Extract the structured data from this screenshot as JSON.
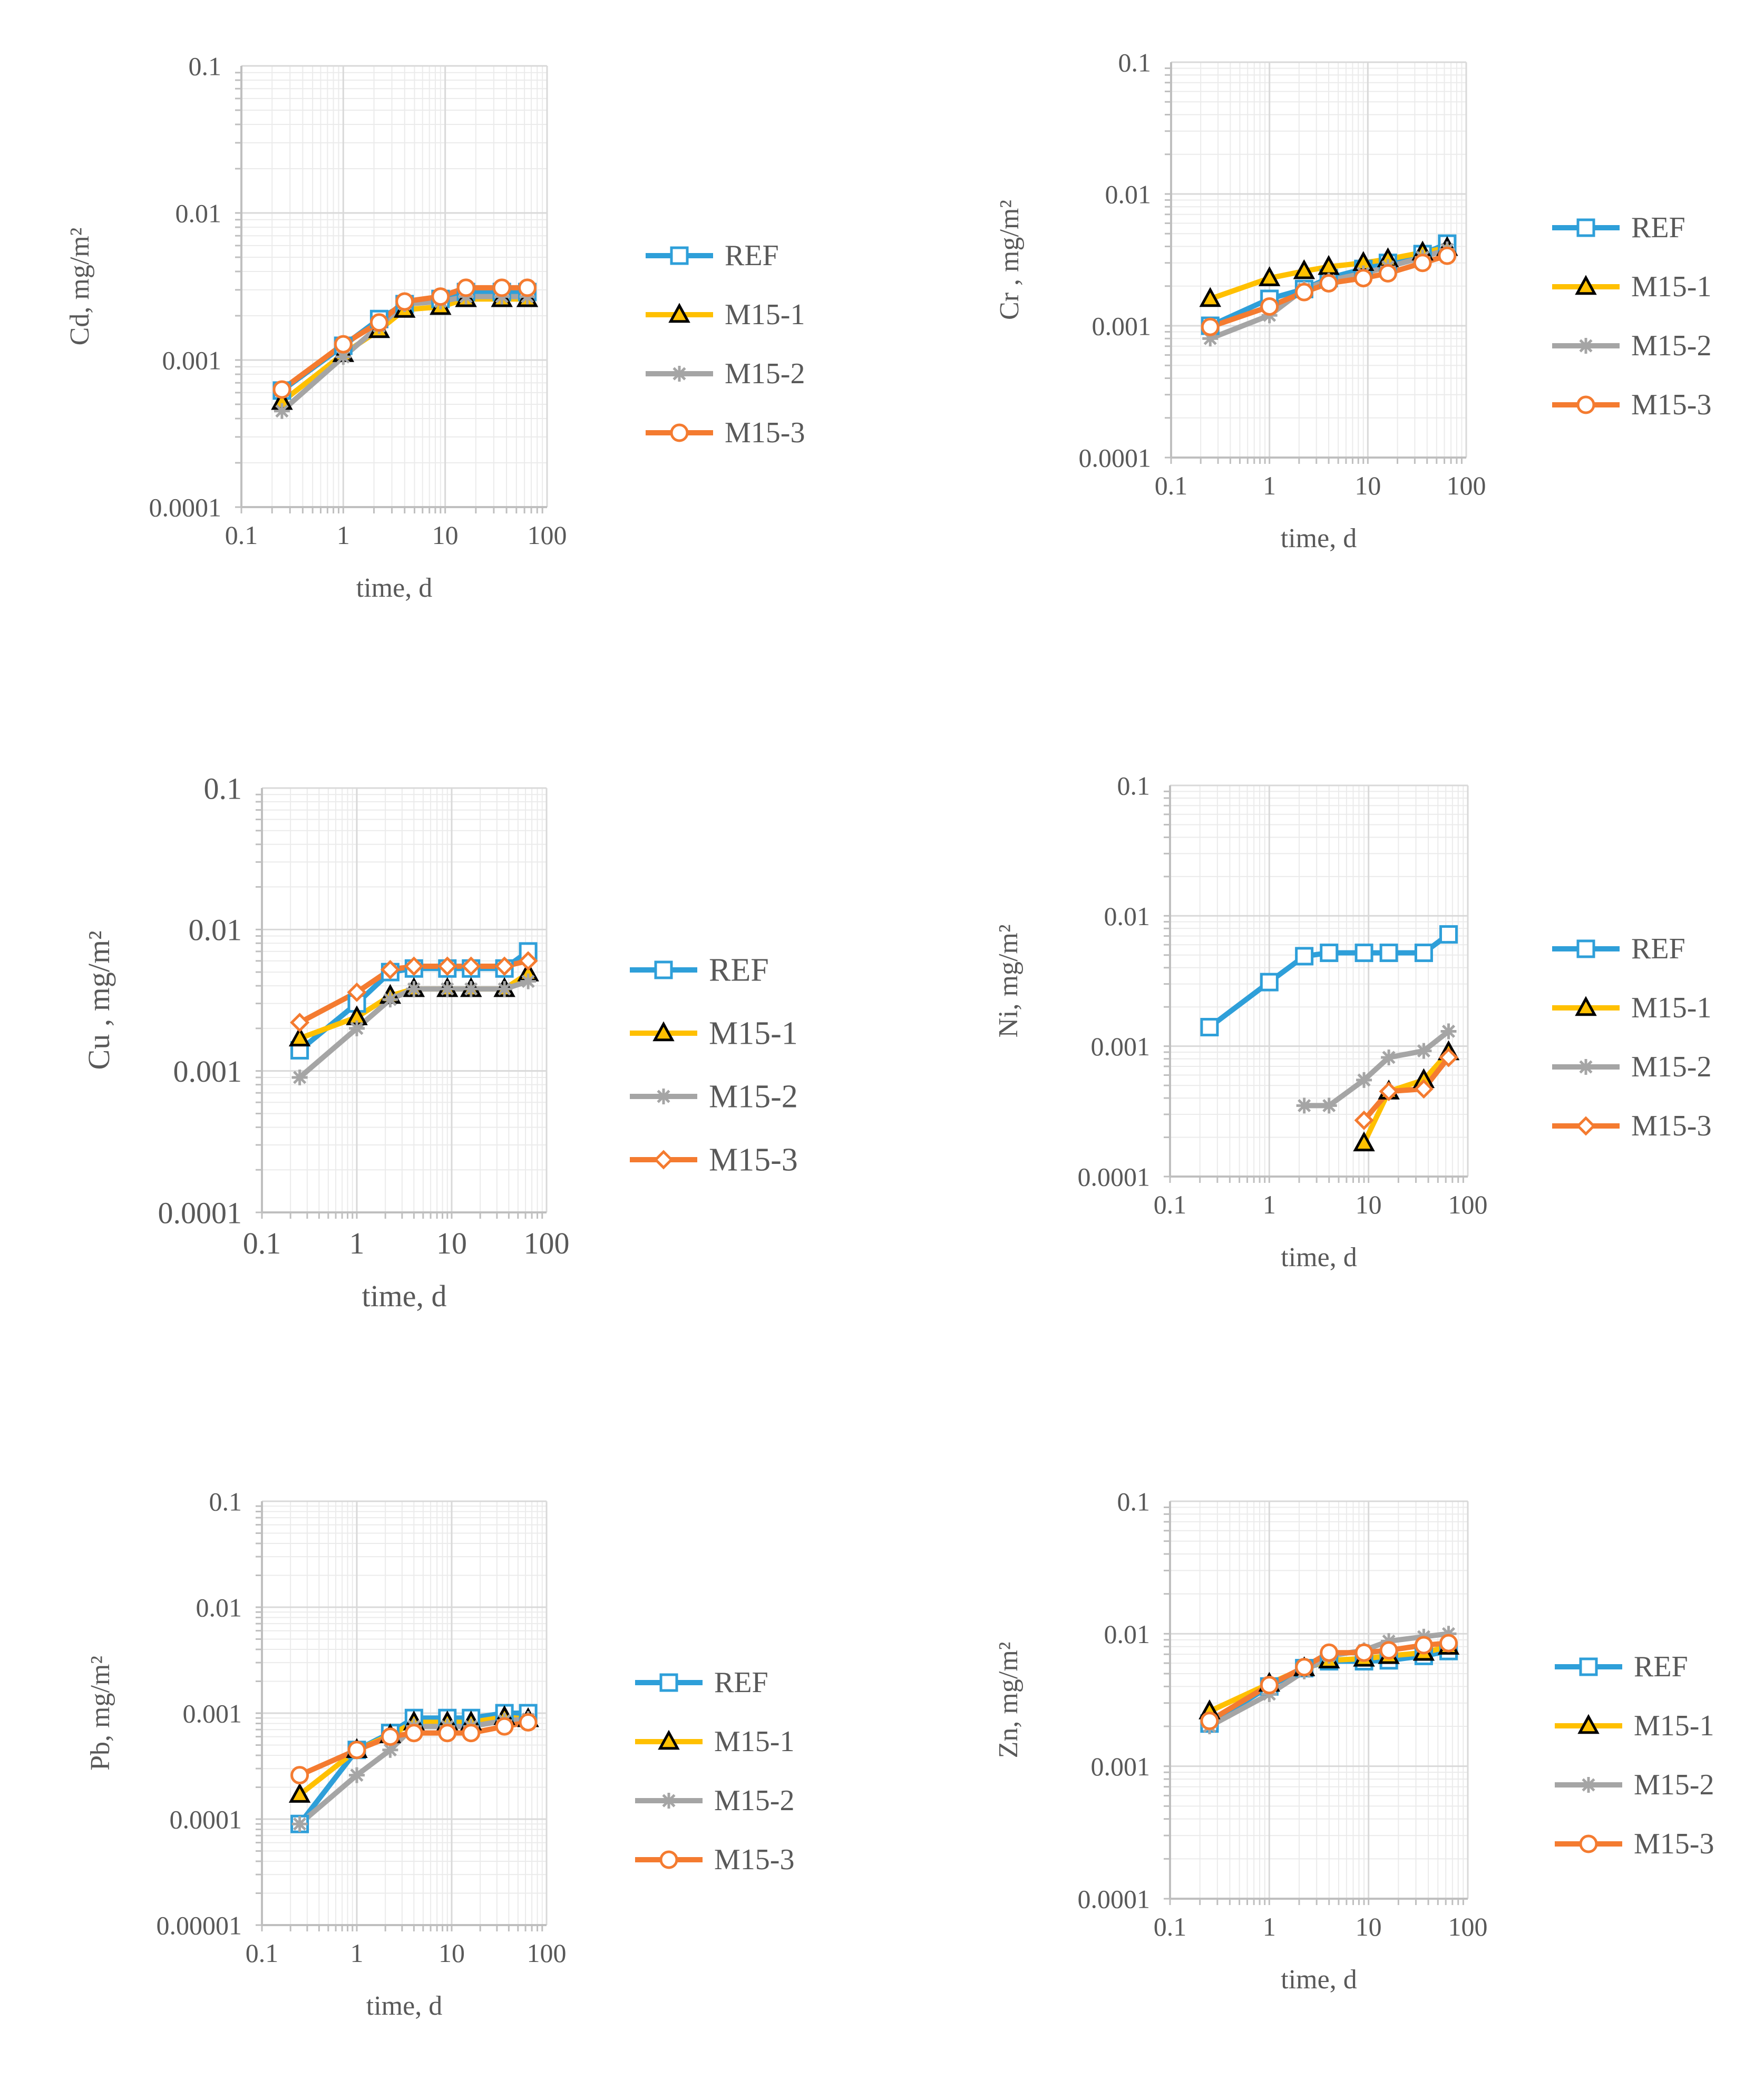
{
  "colors": {
    "REF": "#2E9FD9",
    "M15-1": "#FFC000",
    "M15-2": "#A5A5A5",
    "M15-3": "#F47B30",
    "minor_grid": "#EBEBEB",
    "decade_grid": "#D9D9D9",
    "axis": "#BFBFBF",
    "text": "#595959"
  },
  "legend_labels": [
    "REF",
    "M15-1",
    "M15-2",
    "M15-3"
  ],
  "chart_data": [
    {
      "id": "cd",
      "type": "line",
      "xscale": "log",
      "yscale": "log",
      "xlim": [
        0.1,
        100
      ],
      "ylim": [
        0.0001,
        0.1
      ],
      "xlabel": "time, d",
      "ylabel": "Cd, mg/m²",
      "xticks": [
        "0.1",
        "1",
        "10",
        "100"
      ],
      "yticks": [
        "0.0001",
        "0.001",
        "0.01",
        "0.1"
      ],
      "legend": "right",
      "series": [
        {
          "name": "REF",
          "marker": "square",
          "x": [
            0.25,
            1,
            2.25,
            4,
            9,
            16,
            36,
            64
          ],
          "y": [
            0.00062,
            0.00125,
            0.0019,
            0.0024,
            0.0026,
            0.0029,
            0.0029,
            0.0029
          ]
        },
        {
          "name": "M15-1",
          "marker": "triangle",
          "x": [
            0.25,
            1,
            2.25,
            4,
            9,
            16,
            36,
            64
          ],
          "y": [
            0.00052,
            0.0011,
            0.0016,
            0.0022,
            0.0023,
            0.0026,
            0.0026,
            0.0026
          ]
        },
        {
          "name": "M15-2",
          "marker": "star",
          "x": [
            0.25,
            1,
            2.25,
            4,
            9,
            16,
            36,
            64
          ],
          "y": [
            0.00045,
            0.00105,
            0.0017,
            0.0024,
            0.0025,
            0.0027,
            0.0027,
            0.0027
          ]
        },
        {
          "name": "M15-3",
          "marker": "circle",
          "x": [
            0.25,
            1,
            2.25,
            4,
            9,
            16,
            36,
            64
          ],
          "y": [
            0.00063,
            0.00128,
            0.0018,
            0.0025,
            0.0027,
            0.0031,
            0.0031,
            0.0031
          ]
        }
      ]
    },
    {
      "id": "cr",
      "type": "line",
      "xscale": "log",
      "yscale": "log",
      "xlim": [
        0.1,
        100
      ],
      "ylim": [
        0.0001,
        0.1
      ],
      "xlabel": "time, d",
      "ylabel": "Cr , mg/m²",
      "xticks": [
        "0.1",
        "1",
        "10",
        "100"
      ],
      "yticks": [
        "0.0001",
        "0.001",
        "0.01",
        "0.1"
      ],
      "legend": "right",
      "series": [
        {
          "name": "REF",
          "marker": "square",
          "x": [
            0.25,
            1,
            2.25,
            4,
            9,
            16,
            36,
            64
          ],
          "y": [
            0.001,
            0.0016,
            0.0019,
            0.0023,
            0.0027,
            0.003,
            0.0035,
            0.0042
          ]
        },
        {
          "name": "M15-1",
          "marker": "triangle",
          "x": [
            0.25,
            1,
            2.25,
            4,
            9,
            16,
            36,
            64
          ],
          "y": [
            0.0016,
            0.0023,
            0.0026,
            0.0028,
            0.003,
            0.0032,
            0.0036,
            0.0039
          ]
        },
        {
          "name": "M15-2",
          "marker": "star",
          "x": [
            0.25,
            1,
            2.25,
            4,
            9,
            16,
            36,
            64
          ],
          "y": [
            0.0008,
            0.0012,
            0.0019,
            0.0022,
            0.0025,
            0.0028,
            0.0033,
            0.0038
          ]
        },
        {
          "name": "M15-3",
          "marker": "circle",
          "x": [
            0.25,
            1,
            2.25,
            4,
            9,
            16,
            36,
            64
          ],
          "y": [
            0.00098,
            0.0014,
            0.0018,
            0.0021,
            0.0023,
            0.0025,
            0.003,
            0.0034
          ]
        }
      ]
    },
    {
      "id": "cu",
      "type": "line",
      "xscale": "log",
      "yscale": "log",
      "xlim": [
        0.1,
        100
      ],
      "ylim": [
        0.0001,
        0.1
      ],
      "xlabel": "time, d",
      "ylabel": "Cu , mg/m²",
      "xticks": [
        "0.1",
        "1",
        "10",
        "100"
      ],
      "yticks": [
        "0.0001",
        "0.001",
        "0.01",
        "0.1"
      ],
      "legend": "right",
      "series": [
        {
          "name": "REF",
          "marker": "square",
          "x": [
            0.25,
            1,
            2.25,
            4,
            9,
            16,
            36,
            64
          ],
          "y": [
            0.0014,
            0.003,
            0.005,
            0.0053,
            0.0053,
            0.0053,
            0.0053,
            0.007
          ]
        },
        {
          "name": "M15-1",
          "marker": "triangle",
          "x": [
            0.25,
            1,
            2.25,
            4,
            9,
            16,
            36,
            64
          ],
          "y": [
            0.0017,
            0.0024,
            0.0034,
            0.0038,
            0.0038,
            0.0038,
            0.0038,
            0.0049
          ]
        },
        {
          "name": "M15-2",
          "marker": "star",
          "x": [
            0.25,
            1,
            2.25,
            4,
            9,
            16,
            36,
            64
          ],
          "y": [
            0.0009,
            0.002,
            0.0032,
            0.0038,
            0.0038,
            0.0038,
            0.0038,
            0.0043
          ]
        },
        {
          "name": "M15-3",
          "marker": "diamond",
          "x": [
            0.25,
            1,
            2.25,
            4,
            9,
            16,
            36,
            64
          ],
          "y": [
            0.0022,
            0.0036,
            0.0052,
            0.0055,
            0.0055,
            0.0055,
            0.0055,
            0.006
          ]
        }
      ]
    },
    {
      "id": "ni",
      "type": "line",
      "xscale": "log",
      "yscale": "log",
      "xlim": [
        0.1,
        100
      ],
      "ylim": [
        0.0001,
        0.1
      ],
      "xlabel": "time, d",
      "ylabel": "Ni, mg/m²",
      "xticks": [
        "0.1",
        "1",
        "10",
        "100"
      ],
      "yticks": [
        "0.0001",
        "0.001",
        "0.01",
        "0.1"
      ],
      "legend": "right",
      "series": [
        {
          "name": "REF",
          "marker": "square",
          "x": [
            0.25,
            1,
            2.25,
            4,
            9,
            16,
            36,
            64
          ],
          "y": [
            0.0014,
            0.0031,
            0.0049,
            0.0052,
            0.0052,
            0.0052,
            0.0052,
            0.0072
          ]
        },
        {
          "name": "M15-1",
          "marker": "triangle",
          "x": [
            9,
            16,
            36,
            64
          ],
          "y": [
            0.00018,
            0.00045,
            0.00055,
            0.0009
          ]
        },
        {
          "name": "M15-2",
          "marker": "star",
          "x": [
            2.25,
            4,
            9,
            16,
            36,
            64
          ],
          "y": [
            0.00035,
            0.00035,
            0.00055,
            0.00082,
            0.00092,
            0.0013
          ]
        },
        {
          "name": "M15-3",
          "marker": "diamond",
          "x": [
            9,
            16,
            36,
            64
          ],
          "y": [
            0.00027,
            0.00045,
            0.00047,
            0.00082
          ]
        }
      ]
    },
    {
      "id": "pb",
      "type": "line",
      "xscale": "log",
      "yscale": "log",
      "xlim": [
        0.1,
        100
      ],
      "ylim": [
        1e-05,
        0.1
      ],
      "xlabel": "time, d",
      "ylabel": "Pb, mg/m²",
      "xticks": [
        "0.1",
        "1",
        "10",
        "100"
      ],
      "yticks": [
        "0.00001",
        "0.0001",
        "0.001",
        "0.01",
        "0.1"
      ],
      "legend": "right",
      "series": [
        {
          "name": "REF",
          "marker": "square",
          "x": [
            0.25,
            1,
            2.25,
            4,
            9,
            16,
            36,
            64
          ],
          "y": [
            9e-05,
            0.00045,
            0.00065,
            0.0009,
            0.0009,
            0.0009,
            0.001,
            0.001
          ]
        },
        {
          "name": "M15-1",
          "marker": "triangle",
          "x": [
            0.25,
            1,
            2.25,
            4,
            9,
            16,
            36,
            64
          ],
          "y": [
            0.00017,
            0.00045,
            0.00062,
            0.00082,
            0.00082,
            0.00082,
            0.00092,
            0.00088
          ]
        },
        {
          "name": "M15-2",
          "marker": "star",
          "x": [
            0.25,
            1,
            2.25,
            4,
            9,
            16,
            36,
            64
          ],
          "y": [
            9e-05,
            0.00026,
            0.00045,
            0.00075,
            0.00075,
            0.00075,
            0.00085,
            0.00088
          ]
        },
        {
          "name": "M15-3",
          "marker": "circle",
          "x": [
            0.25,
            1,
            2.25,
            4,
            9,
            16,
            36,
            64
          ],
          "y": [
            0.00026,
            0.00045,
            0.0006,
            0.00065,
            0.00065,
            0.00065,
            0.00075,
            0.00082
          ]
        }
      ]
    },
    {
      "id": "zn",
      "type": "line",
      "xscale": "log",
      "yscale": "log",
      "xlim": [
        0.1,
        100
      ],
      "ylim": [
        0.0001,
        0.1
      ],
      "xlabel": "time, d",
      "ylabel": "Zn, mg/m²",
      "xticks": [
        "0.1",
        "1",
        "10",
        "100"
      ],
      "yticks": [
        "0.0001",
        "0.001",
        "0.01",
        "0.1"
      ],
      "legend": "right",
      "series": [
        {
          "name": "REF",
          "marker": "square",
          "x": [
            0.25,
            1,
            2.25,
            4,
            9,
            16,
            36,
            64
          ],
          "y": [
            0.0021,
            0.004,
            0.0055,
            0.0062,
            0.0062,
            0.0063,
            0.0068,
            0.0074
          ]
        },
        {
          "name": "M15-1",
          "marker": "triangle",
          "x": [
            0.25,
            1,
            2.25,
            4,
            9,
            16,
            36,
            64
          ],
          "y": [
            0.0026,
            0.0042,
            0.0055,
            0.0063,
            0.0065,
            0.0068,
            0.0072,
            0.008
          ]
        },
        {
          "name": "M15-2",
          "marker": "star",
          "x": [
            0.25,
            1,
            2.25,
            4,
            9,
            16,
            36,
            64
          ],
          "y": [
            0.002,
            0.0035,
            0.0052,
            0.0068,
            0.0075,
            0.0088,
            0.0095,
            0.01
          ]
        },
        {
          "name": "M15-3",
          "marker": "circle",
          "x": [
            0.25,
            1,
            2.25,
            4,
            9,
            16,
            36,
            64
          ],
          "y": [
            0.0022,
            0.0041,
            0.0056,
            0.0072,
            0.0072,
            0.0075,
            0.0082,
            0.0085
          ]
        }
      ]
    }
  ]
}
